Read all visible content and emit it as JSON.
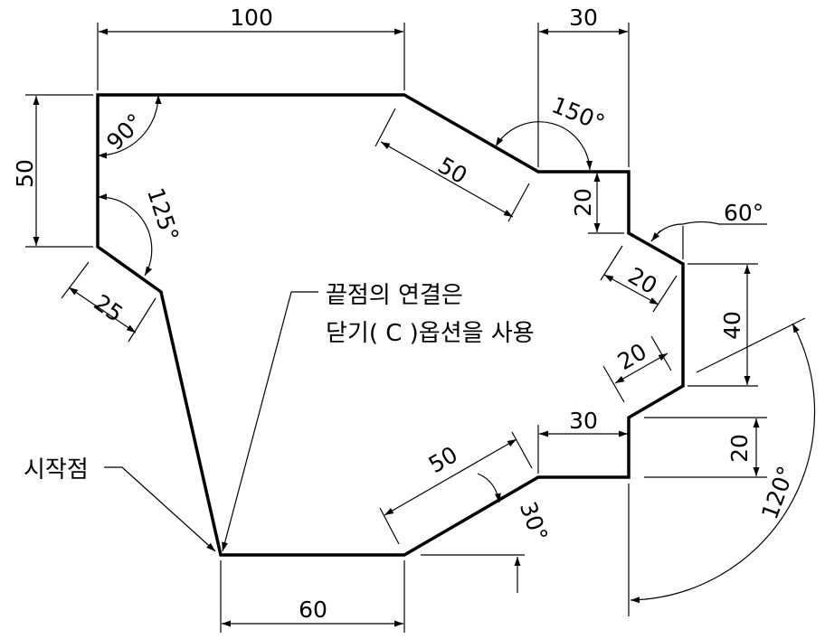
{
  "diagram": {
    "stroke_color": "#000000",
    "background": "#ffffff",
    "dimensions": {
      "top_width": "100",
      "left_height": "50",
      "angle_top_left": "90°",
      "angle_left": "125°",
      "slant_lower_left": "25",
      "slant_upper": "50",
      "top_right_width": "30",
      "angle_upper_right": "150°",
      "step_upper": "20",
      "angle_right": "60°",
      "chamfer_upper": "20",
      "right_height": "40",
      "chamfer_lower": "20",
      "step_lower_width": "30",
      "step_lower_height": "20",
      "slant_lower": "50",
      "angle_lower": "30°",
      "angle_big": "120°",
      "bottom_width": "60"
    },
    "notes": {
      "end_connect_line1": "끝점의 연결은",
      "end_connect_line2": "닫기( C )옵션을 사용",
      "start_point": "시작점"
    }
  }
}
